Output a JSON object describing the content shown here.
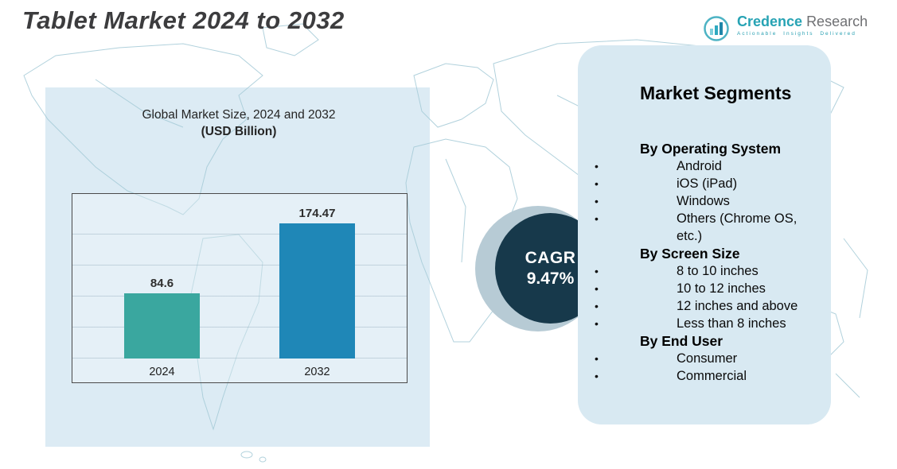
{
  "page": {
    "title": "Tablet Market 2024 to 2032"
  },
  "logo": {
    "icon": "bar-chart-logo-icon",
    "brand_primary": "Credence",
    "brand_secondary": "Research",
    "tagline": "Actionable Insights Delivered"
  },
  "chart_panel": {
    "title_line1": "Global Market Size, 2024 and 2032",
    "title_line2": "(USD Billion)"
  },
  "chart_data": {
    "type": "bar",
    "title": "Global Market Size, 2024 and 2032 (USD Billion)",
    "categories": [
      "2024",
      "2032"
    ],
    "values": [
      84.6,
      174.47
    ],
    "value_labels": [
      "84.6",
      "174.47"
    ],
    "xlabel": "",
    "ylabel": "",
    "ylim": [
      0,
      200
    ],
    "grid": true,
    "legend": false,
    "bar_colors": [
      "#3aa79f",
      "#1f87b7"
    ]
  },
  "cagr_badge": {
    "label": "CAGR",
    "value": "9.47%"
  },
  "segments_panel": {
    "title": "Market Segments",
    "groups": [
      {
        "heading": "By Operating System",
        "items": [
          "Android",
          "iOS (iPad)",
          "Windows",
          "Others (Chrome OS, etc.)"
        ]
      },
      {
        "heading": "By Screen Size",
        "items": [
          "8 to 10 inches",
          "10 to 12 inches",
          "12 inches and above",
          "Less than 8 inches"
        ]
      },
      {
        "heading": "By  End User",
        "items": [
          "Consumer",
          "Commercial"
        ]
      }
    ]
  },
  "colors": {
    "bar_2024": "#3aa79f",
    "bar_2032": "#1f87b7",
    "cagr_circle": "#17394b",
    "cagr_back_circle": "#b7cbd5",
    "panel_background": "#d8e9f2",
    "left_rect_background": "#dcebf4",
    "map_line": "#a9cdd9",
    "brand_teal": "#27a3b4",
    "brand_gray": "#6f7073",
    "title_gray": "#3c3c3e"
  }
}
